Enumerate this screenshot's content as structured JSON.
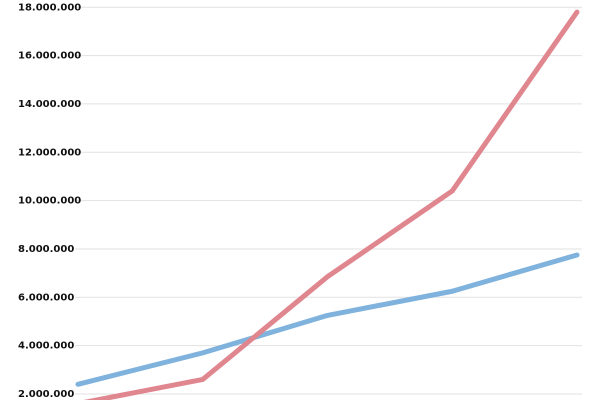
{
  "chart_data": {
    "type": "line",
    "categories": [
      null,
      null,
      null,
      null,
      null
    ],
    "series": [
      {
        "color": "#7fb2dc",
        "values": [
          2400000,
          3700000,
          5250000,
          6250000,
          7750000
        ]
      },
      {
        "color": "#e0868f",
        "values": [
          1600000,
          2600000,
          6850000,
          10400000,
          17800000
        ]
      }
    ],
    "ylim": [
      1750000,
      18300000
    ],
    "yticks": [
      {
        "value": 2000000,
        "label": "2.000.000"
      },
      {
        "value": 4000000,
        "label": "4.000.000"
      },
      {
        "value": 6000000,
        "label": "6.000.000"
      },
      {
        "value": 8000000,
        "label": "8.000.000"
      },
      {
        "value": 10000000,
        "label": "10.000.000"
      },
      {
        "value": 12000000,
        "label": "12.000.000"
      },
      {
        "value": 14000000,
        "label": "14.000.000"
      },
      {
        "value": 16000000,
        "label": "16.000.000"
      },
      {
        "value": 18000000,
        "label": "18.000.000"
      }
    ],
    "grid": true
  }
}
